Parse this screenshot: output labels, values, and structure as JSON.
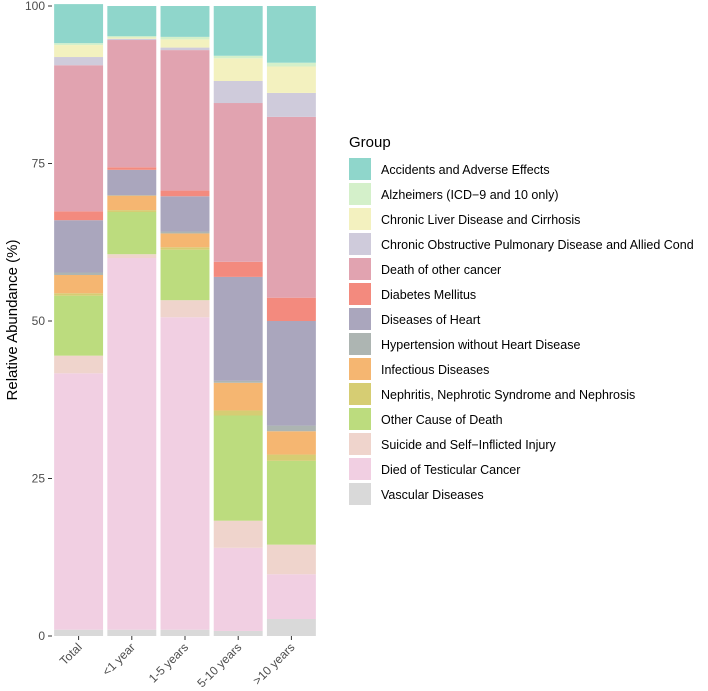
{
  "chart_data": {
    "type": "bar",
    "stacked": true,
    "ylabel": "Relative Abundance (%)",
    "xlabel": "",
    "ylim": [
      0,
      100
    ],
    "yticks": [
      0,
      25,
      50,
      75,
      100
    ],
    "grid": false,
    "legend_position": "right",
    "legend_title": "Group",
    "categories": [
      "Total",
      "<1 year",
      "1-5 years",
      "5-10 years",
      ">10 years"
    ],
    "series": [
      {
        "name": "Vascular Diseases",
        "color": "#d9d9d9",
        "values": [
          1.0,
          1.0,
          1.0,
          0.8,
          2.7
        ]
      },
      {
        "name": "Died of Testicular Cancer",
        "color": "#f1cfe2",
        "values": [
          40.7,
          59.0,
          49.6,
          13.2,
          7.1
        ]
      },
      {
        "name": "Suicide and Self-Inflicted Injury",
        "color": "#efd4cc",
        "values": [
          2.8,
          0.6,
          2.7,
          4.3,
          4.7
        ]
      },
      {
        "name": "Other Cause of Death",
        "color": "#bcdc7e",
        "values": [
          9.5,
          6.7,
          8.0,
          16.7,
          13.3
        ]
      },
      {
        "name": "Nephritis, Nephrotic Syndrome and Nephrosis",
        "color": "#d6cd73",
        "values": [
          0.4,
          0.3,
          0.4,
          0.8,
          1.0
        ]
      },
      {
        "name": "Infectious Diseases",
        "color": "#f5b671",
        "values": [
          2.9,
          2.3,
          2.2,
          4.4,
          3.7
        ]
      },
      {
        "name": "Hypertension without Heart Disease",
        "color": "#adb5b2",
        "values": [
          0.4,
          0.1,
          0.3,
          0.3,
          0.9
        ]
      },
      {
        "name": "Diseases of Heart",
        "color": "#aaa6bd",
        "values": [
          8.3,
          4.0,
          5.6,
          16.5,
          16.6
        ]
      },
      {
        "name": "Diabetes Mellitus",
        "color": "#f38a7e",
        "values": [
          1.4,
          0.4,
          0.9,
          2.4,
          3.7
        ]
      },
      {
        "name": "Death of other cancer",
        "color": "#e1a3b0",
        "values": [
          23.2,
          20.2,
          22.3,
          25.2,
          28.7
        ]
      },
      {
        "name": "Chronic Obstructive Pulmonary Disease and Allied Cond",
        "color": "#cfcbdb",
        "values": [
          1.3,
          0.2,
          0.4,
          3.5,
          3.8
        ]
      },
      {
        "name": "Chronic Liver Disease and Cirrhosis",
        "color": "#f3f1bf",
        "values": [
          1.9,
          0.2,
          1.3,
          3.6,
          4.2
        ]
      },
      {
        "name": "Alzheimers (ICD−9 and 10 only)",
        "color": "#d4f0ca",
        "values": [
          0.3,
          0.2,
          0.4,
          0.4,
          0.6
        ]
      },
      {
        "name": "Accidents and Adverse Effects",
        "color": "#8fd6cb",
        "values": [
          6.2,
          4.8,
          4.9,
          7.9,
          9.0
        ]
      }
    ],
    "legend_order": [
      "Accidents and Adverse Effects",
      "Alzheimers (ICD−9 and 10 only)",
      "Chronic Liver Disease and Cirrhosis",
      "Chronic Obstructive Pulmonary Disease and Allied Cond",
      "Death of other cancer",
      "Diabetes Mellitus",
      "Diseases of Heart",
      "Hypertension without Heart Disease",
      "Infectious Diseases",
      "Nephritis, Nephrotic Syndrome and Nephrosis",
      "Other Cause of Death",
      "Suicide and Self−Inflicted Injury",
      "Died of Testicular Cancer",
      "Vascular Diseases"
    ]
  }
}
